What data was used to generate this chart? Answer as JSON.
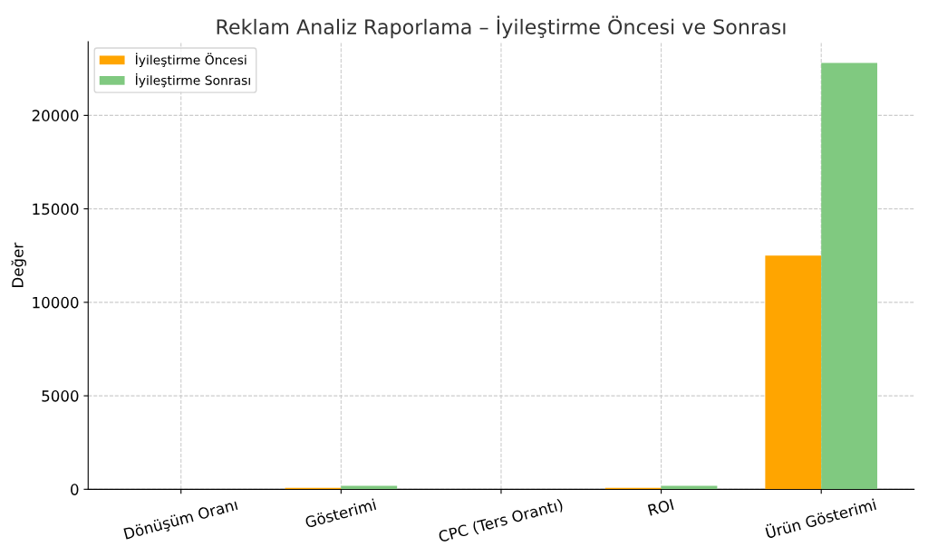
{
  "chart_data": {
    "type": "bar",
    "title": "Reklam Analiz Raporlama – İyileştirme Öncesi ve Sonrası",
    "ylabel": "Değer",
    "categories": [
      "Dönüşüm Oranı",
      "Gösterimi",
      "CPC (Ters Orantı)",
      "ROI",
      "Ürün Gösterimi"
    ],
    "series": [
      {
        "name": "İyileştirme Öncesi",
        "color": "#ffa500",
        "values": [
          0,
          80,
          0,
          80,
          12500
        ]
      },
      {
        "name": "İyileştirme Sonrası",
        "color": "#80c980",
        "values": [
          0,
          180,
          0,
          180,
          22800
        ]
      }
    ],
    "ylim": [
      0,
      23940
    ],
    "yticks": [
      0,
      5000,
      10000,
      15000,
      20000
    ],
    "grid": true,
    "legend": "top left"
  }
}
